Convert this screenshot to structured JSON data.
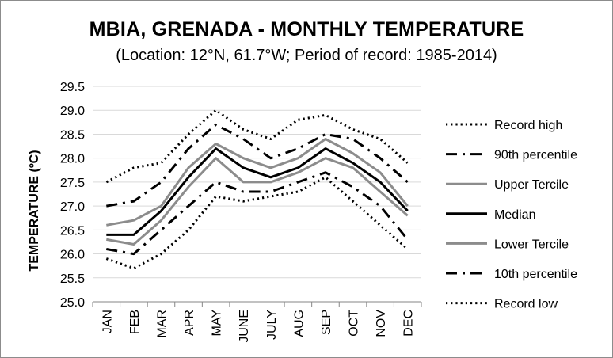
{
  "chart_data": {
    "type": "line",
    "title": "MBIA, GRENADA - MONTHLY TEMPERATURE",
    "subtitle": "(Location: 12°N, 61.7°W; Period of record: 1985-2014)",
    "xlabel": "",
    "ylabel": "TEMPERATURE (ºC)",
    "ylim": [
      25.0,
      29.5
    ],
    "yticks": [
      "25.0",
      "25.5",
      "26.0",
      "26.5",
      "27.0",
      "27.5",
      "28.0",
      "28.5",
      "29.0",
      "29.5"
    ],
    "grid": true,
    "legend_position": "right",
    "categories": [
      "JAN",
      "FEB",
      "MAR",
      "APR",
      "MAY",
      "JUNE",
      "JULY",
      "AUG",
      "SEP",
      "OCT",
      "NOV",
      "DEC"
    ],
    "series": [
      {
        "name": "Record high",
        "style": "dotted",
        "color": "#000000",
        "values": [
          27.5,
          27.8,
          27.9,
          28.5,
          29.0,
          28.6,
          28.4,
          28.8,
          28.9,
          28.6,
          28.4,
          27.9
        ]
      },
      {
        "name": "90th percentile",
        "style": "dashdot",
        "color": "#000000",
        "values": [
          27.0,
          27.1,
          27.5,
          28.2,
          28.7,
          28.4,
          28.0,
          28.2,
          28.5,
          28.4,
          28.0,
          27.5
        ]
      },
      {
        "name": "Upper Tercile",
        "style": "solid",
        "color": "#8c8c8c",
        "values": [
          26.6,
          26.7,
          27.0,
          27.8,
          28.3,
          28.0,
          27.8,
          28.0,
          28.4,
          28.1,
          27.7,
          27.0
        ]
      },
      {
        "name": "Median",
        "style": "solid",
        "color": "#000000",
        "values": [
          26.4,
          26.4,
          26.9,
          27.6,
          28.2,
          27.8,
          27.6,
          27.8,
          28.2,
          27.9,
          27.5,
          26.9
        ]
      },
      {
        "name": "Lower Tercile",
        "style": "solid",
        "color": "#8c8c8c",
        "values": [
          26.3,
          26.2,
          26.7,
          27.4,
          28.0,
          27.5,
          27.5,
          27.7,
          28.0,
          27.8,
          27.3,
          26.8
        ]
      },
      {
        "name": "10th percentile",
        "style": "dashdot",
        "color": "#000000",
        "values": [
          26.1,
          26.0,
          26.5,
          27.0,
          27.5,
          27.3,
          27.3,
          27.5,
          27.7,
          27.4,
          27.0,
          26.3
        ]
      },
      {
        "name": "Record low",
        "style": "dotted",
        "color": "#000000",
        "values": [
          25.9,
          25.7,
          26.0,
          26.5,
          27.2,
          27.1,
          27.2,
          27.3,
          27.6,
          27.1,
          26.6,
          26.1
        ]
      }
    ]
  }
}
